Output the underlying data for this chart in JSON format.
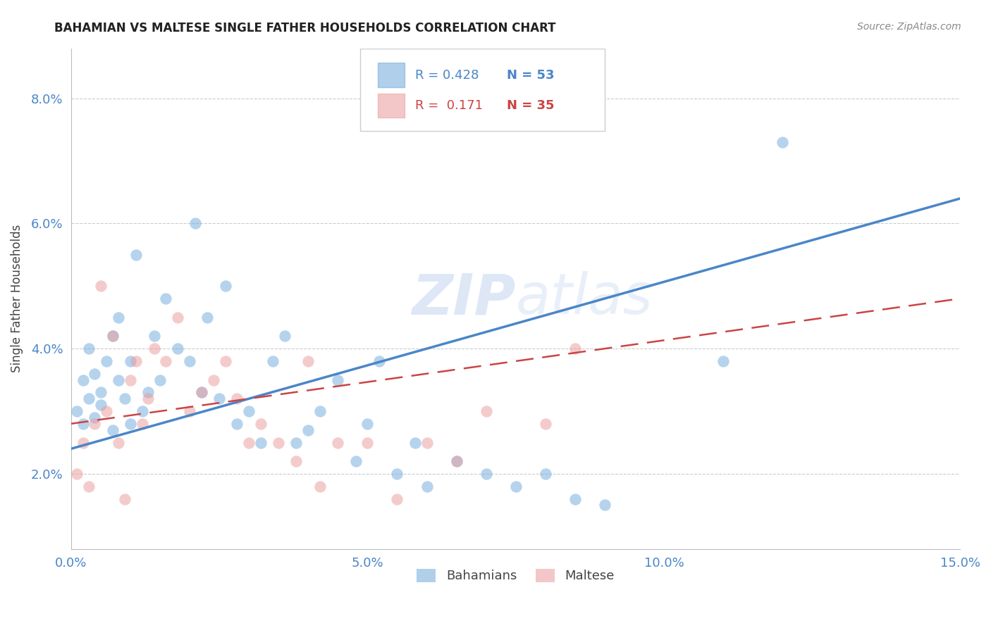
{
  "title": "BAHAMIAN VS MALTESE SINGLE FATHER HOUSEHOLDS CORRELATION CHART",
  "source": "Source: ZipAtlas.com",
  "ylabel": "Single Father Households",
  "xlim": [
    0.0,
    0.15
  ],
  "ylim": [
    0.008,
    0.088
  ],
  "ytick_vals": [
    0.02,
    0.04,
    0.06,
    0.08
  ],
  "xtick_vals": [
    0.0,
    0.05,
    0.1,
    0.15
  ],
  "bahamian_color": "#6fa8dc",
  "maltese_color": "#ea9999",
  "bahamian_line_color": "#4a86c8",
  "maltese_line_color": "#cc4444",
  "R_bahamian": 0.428,
  "N_bahamian": 53,
  "R_maltese": 0.171,
  "N_maltese": 35,
  "watermark": "ZIPatlas",
  "bah_line_x": [
    0.0,
    0.15
  ],
  "bah_line_y": [
    0.024,
    0.064
  ],
  "mal_line_x": [
    0.0,
    0.15
  ],
  "mal_line_y": [
    0.028,
    0.048
  ],
  "bahamian_x": [
    0.001,
    0.002,
    0.002,
    0.003,
    0.003,
    0.004,
    0.004,
    0.005,
    0.005,
    0.006,
    0.007,
    0.007,
    0.008,
    0.008,
    0.009,
    0.01,
    0.01,
    0.011,
    0.012,
    0.013,
    0.014,
    0.015,
    0.016,
    0.018,
    0.02,
    0.021,
    0.022,
    0.023,
    0.025,
    0.026,
    0.028,
    0.03,
    0.032,
    0.034,
    0.036,
    0.038,
    0.04,
    0.042,
    0.045,
    0.048,
    0.05,
    0.052,
    0.055,
    0.058,
    0.06,
    0.065,
    0.07,
    0.075,
    0.08,
    0.085,
    0.09,
    0.11,
    0.12
  ],
  "bahamian_y": [
    0.03,
    0.028,
    0.035,
    0.032,
    0.04,
    0.029,
    0.036,
    0.031,
    0.033,
    0.038,
    0.042,
    0.027,
    0.035,
    0.045,
    0.032,
    0.028,
    0.038,
    0.055,
    0.03,
    0.033,
    0.042,
    0.035,
    0.048,
    0.04,
    0.038,
    0.06,
    0.033,
    0.045,
    0.032,
    0.05,
    0.028,
    0.03,
    0.025,
    0.038,
    0.042,
    0.025,
    0.027,
    0.03,
    0.035,
    0.022,
    0.028,
    0.038,
    0.02,
    0.025,
    0.018,
    0.022,
    0.02,
    0.018,
    0.02,
    0.016,
    0.015,
    0.038,
    0.073
  ],
  "maltese_x": [
    0.001,
    0.002,
    0.003,
    0.004,
    0.005,
    0.006,
    0.007,
    0.008,
    0.009,
    0.01,
    0.011,
    0.012,
    0.013,
    0.014,
    0.016,
    0.018,
    0.02,
    0.022,
    0.024,
    0.026,
    0.028,
    0.03,
    0.032,
    0.035,
    0.038,
    0.04,
    0.042,
    0.045,
    0.05,
    0.055,
    0.06,
    0.065,
    0.07,
    0.08,
    0.085
  ],
  "maltese_y": [
    0.02,
    0.025,
    0.018,
    0.028,
    0.05,
    0.03,
    0.042,
    0.025,
    0.016,
    0.035,
    0.038,
    0.028,
    0.032,
    0.04,
    0.038,
    0.045,
    0.03,
    0.033,
    0.035,
    0.038,
    0.032,
    0.025,
    0.028,
    0.025,
    0.022,
    0.038,
    0.018,
    0.025,
    0.025,
    0.016,
    0.025,
    0.022,
    0.03,
    0.028,
    0.04
  ]
}
